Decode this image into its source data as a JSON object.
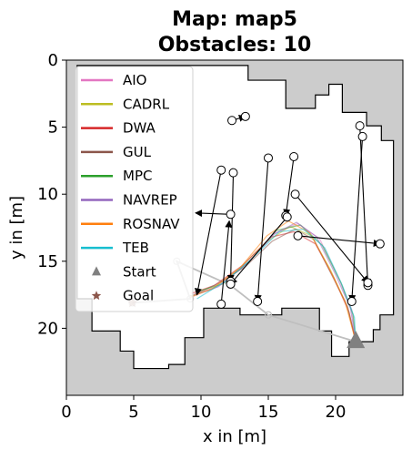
{
  "chart_data": {
    "type": "line",
    "title": "Map: map5",
    "subtitle": "Obstacles: 10",
    "xlabel": "x in [m]",
    "ylabel": "y in [m]",
    "xlim": [
      0,
      25
    ],
    "ylim": [
      25,
      0
    ],
    "x_ticks": [
      0,
      5,
      10,
      15,
      20
    ],
    "y_ticks": [
      0,
      5,
      10,
      15,
      20
    ],
    "grid": false,
    "legend_position": "top-left",
    "colors": {
      "obstacle_fill": "#cccccc",
      "free_space": "#ffffff",
      "walls": "#000000",
      "start_marker": "#808080",
      "goal_marker": "#8c564b"
    },
    "series": [
      {
        "name": "AIO",
        "color": "#e377c2",
        "x": [
          21.5,
          21.2,
          20.2,
          18.8,
          17.2,
          15.5,
          13.5,
          11.2,
          9.4
        ],
        "y": [
          21.0,
          18.6,
          16.2,
          13.3,
          12.2,
          12.9,
          15.1,
          16.9,
          17.5
        ]
      },
      {
        "name": "CADRL",
        "color": "#bcbd22",
        "x": [
          21.5,
          20.8,
          19.6,
          18.2,
          16.6,
          14.8,
          12.8,
          10.8,
          9.2
        ],
        "y": [
          21.0,
          18.2,
          15.6,
          13.1,
          12.4,
          13.6,
          15.6,
          17.1,
          17.6
        ]
      },
      {
        "name": "DWA",
        "color": "#d62728",
        "x": [
          21.5,
          21.0,
          19.9,
          18.5,
          16.9,
          15.2,
          13.1,
          11.0,
          9.3
        ],
        "y": [
          21.0,
          18.8,
          16.3,
          13.7,
          12.8,
          13.2,
          15.3,
          16.8,
          17.4
        ]
      },
      {
        "name": "GUL",
        "color": "#8c564b",
        "x": [
          21.5,
          20.9,
          19.6,
          18.4,
          17.0,
          15.3,
          13.3,
          11.4,
          9.5
        ],
        "y": [
          21.0,
          18.4,
          15.8,
          13.4,
          12.6,
          13.5,
          15.4,
          16.6,
          17.5
        ]
      },
      {
        "name": "MPC",
        "color": "#2ca02c",
        "x": [
          21.5,
          21.3,
          20.4,
          19.0,
          17.4,
          15.6,
          13.7,
          11.6,
          9.6
        ],
        "y": [
          21.0,
          19.0,
          16.6,
          13.8,
          12.3,
          12.7,
          14.9,
          16.7,
          17.3
        ]
      },
      {
        "name": "NAVREP",
        "color": "#9467bd",
        "x": [
          21.5,
          21.1,
          20.0,
          18.6,
          17.1,
          15.4,
          13.4,
          11.3,
          9.4
        ],
        "y": [
          21.0,
          18.5,
          16.0,
          13.2,
          12.1,
          13.0,
          15.2,
          16.9,
          17.6
        ]
      },
      {
        "name": "ROSNAV",
        "color": "#ff7f0e",
        "x": [
          21.5,
          20.7,
          19.4,
          18.1,
          16.5,
          14.9,
          12.9,
          10.9,
          9.2
        ],
        "y": [
          21.0,
          18.0,
          15.3,
          12.9,
          12.0,
          13.1,
          15.5,
          17.0,
          17.7
        ]
      },
      {
        "name": "TEB",
        "color": "#17becf",
        "x": [
          21.5,
          21.4,
          20.5,
          19.2,
          17.6,
          15.8,
          13.8,
          11.8,
          9.7
        ],
        "y": [
          21.0,
          19.2,
          16.8,
          14.0,
          12.6,
          12.8,
          14.8,
          16.5,
          17.8
        ]
      }
    ],
    "start": {
      "label": "Start",
      "x": 21.5,
      "y": 21.0
    },
    "goal": {
      "label": "Goal",
      "x": 4.9,
      "y": 18.1
    },
    "waypoint_path": {
      "x": [
        21.5,
        15.0,
        12.2,
        8.2,
        9.2,
        4.9
      ],
      "y": [
        21.0,
        19.0,
        16.8,
        15.0,
        17.8,
        18.1
      ]
    },
    "obstacle_arrows": [
      {
        "x0": 12.3,
        "y0": 4.5,
        "x1": 13.3,
        "y1": 4.2
      },
      {
        "x0": 21.8,
        "y0": 4.9,
        "x1": 22.4,
        "y1": 16.8
      },
      {
        "x0": 22.0,
        "y0": 5.7,
        "x1": 21.2,
        "y1": 18.0
      },
      {
        "x0": 15.0,
        "y0": 7.3,
        "x1": 14.2,
        "y1": 18.0
      },
      {
        "x0": 16.9,
        "y0": 7.2,
        "x1": 16.3,
        "y1": 11.6
      },
      {
        "x0": 12.4,
        "y0": 8.4,
        "x1": 12.2,
        "y1": 16.5
      },
      {
        "x0": 11.5,
        "y0": 8.2,
        "x1": 9.7,
        "y1": 17.5
      },
      {
        "x0": 17.0,
        "y0": 10.0,
        "x1": 22.4,
        "y1": 16.6
      },
      {
        "x0": 12.2,
        "y0": 11.5,
        "x1": 9.6,
        "y1": 11.4
      },
      {
        "x0": 16.4,
        "y0": 11.7,
        "x1": 12.2,
        "y1": 16.7
      },
      {
        "x0": 17.2,
        "y0": 13.1,
        "x1": 23.3,
        "y1": 13.7
      },
      {
        "x0": 11.5,
        "y0": 18.2,
        "x1": 12.1,
        "y1": 12.0
      }
    ],
    "obstacles_circles": [
      {
        "x": 13.3,
        "y": 4.2
      },
      {
        "x": 22.4,
        "y": 16.8
      },
      {
        "x": 21.2,
        "y": 18.0
      },
      {
        "x": 14.2,
        "y": 18.0
      },
      {
        "x": 16.3,
        "y": 11.6
      },
      {
        "x": 12.2,
        "y": 16.5
      },
      {
        "x": 22.4,
        "y": 16.6
      },
      {
        "x": 12.2,
        "y": 16.7
      },
      {
        "x": 23.3,
        "y": 13.7
      },
      {
        "x": 11.5,
        "y": 18.2
      },
      {
        "x": 12.3,
        "y": 4.5
      },
      {
        "x": 21.8,
        "y": 4.9
      },
      {
        "x": 22.0,
        "y": 5.7
      },
      {
        "x": 15.0,
        "y": 7.3
      },
      {
        "x": 16.9,
        "y": 7.2
      },
      {
        "x": 12.4,
        "y": 8.4
      },
      {
        "x": 11.5,
        "y": 8.2
      },
      {
        "x": 17.0,
        "y": 10.0
      },
      {
        "x": 12.2,
        "y": 11.5
      },
      {
        "x": 16.4,
        "y": 11.7
      },
      {
        "x": 17.2,
        "y": 13.1
      }
    ],
    "free_space_polygon": {
      "x": [
        0.8,
        13.5,
        13.5,
        16.3,
        16.3,
        18.5,
        18.5,
        19.5,
        19.5,
        20.5,
        20.5,
        22.3,
        22.3,
        23.4,
        23.4,
        24.3,
        24.3,
        23.3,
        23.3,
        22.8,
        22.8,
        21.0,
        21.0,
        19.7,
        19.7,
        18.8,
        18.8,
        16.0,
        16.0,
        12.9,
        12.9,
        10.2,
        10.2,
        8.8,
        8.8,
        7.6,
        7.6,
        5.0,
        5.0,
        4.0,
        4.0,
        1.9,
        1.9,
        0.8
      ],
      "y": [
        0.4,
        0.4,
        1.5,
        1.5,
        3.6,
        3.6,
        2.6,
        2.6,
        1.8,
        1.8,
        3.9,
        3.9,
        4.9,
        4.9,
        6.0,
        6.0,
        19.0,
        19.0,
        20.1,
        20.1,
        21.0,
        21.0,
        22.1,
        22.1,
        20.2,
        20.2,
        18.5,
        18.5,
        19.0,
        19.0,
        18.5,
        18.5,
        20.7,
        20.7,
        22.7,
        22.7,
        23.0,
        23.0,
        21.7,
        21.7,
        20.2,
        20.2,
        17.8,
        17.8
      ]
    }
  }
}
